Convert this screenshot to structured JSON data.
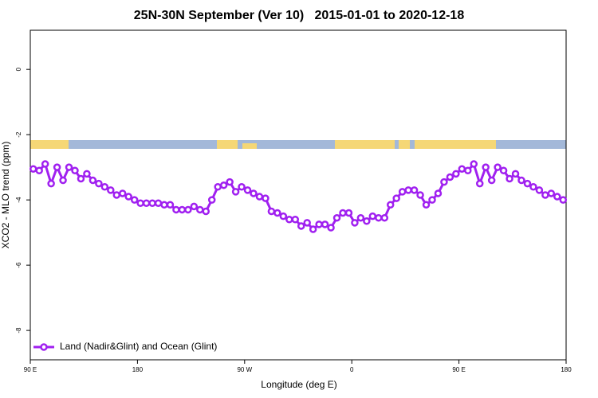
{
  "chart_data": {
    "type": "line",
    "title": "25N-30N September (Ver 10)   2015-01-01 to 2020-12-18",
    "xlabel": "Longitude (deg E)",
    "ylabel": "XCO2 - MLO trend (ppm)",
    "xlim": [
      90,
      540
    ],
    "xticks": [
      {
        "value": 90,
        "label": "90 E"
      },
      180,
      {
        "value": 270,
        "label": "90 W"
      },
      {
        "value": 360,
        "label": "0"
      },
      {
        "value": 450,
        "label": "90 E"
      },
      {
        "value": 540,
        "label": "180"
      }
    ],
    "ylim": [
      -8.9,
      1.2
    ],
    "yticks": [
      0,
      -2,
      -4,
      -6,
      -8
    ],
    "legend": "bottomleft",
    "x": [
      92.5,
      97.5,
      102.5,
      107.5,
      112.5,
      117.5,
      122.5,
      127.5,
      132.5,
      137.5,
      142.5,
      147.5,
      152.5,
      157.5,
      162.5,
      167.5,
      172.5,
      177.5,
      182.5,
      187.5,
      192.5,
      197.5,
      202.5,
      207.5,
      212.5,
      217.5,
      222.5,
      227.5,
      232.5,
      237.5,
      242.5,
      247.5,
      252.5,
      257.5,
      262.5,
      267.5,
      272.5,
      277.5,
      282.5,
      287.5,
      292.5,
      297.5,
      302.5,
      307.5,
      312.5,
      317.5,
      322.5,
      327.5,
      332.5,
      337.5,
      342.5,
      347.5,
      352.5,
      357.5,
      362.5,
      367.5,
      372.5,
      377.5,
      382.5,
      387.5,
      392.5,
      397.5,
      402.5,
      407.5,
      412.5,
      417.5,
      422.5,
      427.5,
      432.5,
      437.5,
      442.5,
      447.5,
      452.5,
      457.5,
      462.5,
      467.5,
      472.5,
      477.5,
      482.5,
      487.5,
      492.5,
      497.5,
      502.5,
      507.5,
      512.5,
      517.5,
      522.5,
      527.5,
      532.5,
      537.5
    ],
    "series": [
      {
        "name": "Land (Nadir&Glint) and Ocean (Glint)",
        "color": "#a020f0",
        "values": [
          -3.05,
          -3.1,
          -2.9,
          -3.5,
          -3.0,
          -3.4,
          -3.0,
          -3.1,
          -3.35,
          -3.2,
          -3.4,
          -3.5,
          -3.6,
          -3.7,
          -3.85,
          -3.8,
          -3.9,
          -4.0,
          -4.1,
          -4.1,
          -4.1,
          -4.1,
          -4.15,
          -4.15,
          -4.3,
          -4.3,
          -4.3,
          -4.2,
          -4.3,
          -4.35,
          -4.0,
          -3.6,
          -3.55,
          -3.45,
          -3.75,
          -3.6,
          -3.7,
          -3.8,
          -3.9,
          -3.95,
          -4.35,
          -4.4,
          -4.5,
          -4.6,
          -4.6,
          -4.8,
          -4.7,
          -4.9,
          -4.75,
          -4.75,
          -4.85,
          -4.55,
          -4.4,
          -4.4,
          -4.7,
          -4.55,
          -4.65,
          -4.5,
          -4.55,
          -4.55,
          -4.15,
          -3.95,
          -3.75,
          -3.7,
          -3.7,
          -3.85,
          -4.15,
          -4.0,
          -3.8,
          -3.45,
          -3.3,
          -3.2,
          -3.05,
          -3.1,
          -2.9,
          -3.5,
          -3.0,
          -3.4,
          -3.0,
          -3.1,
          -3.35,
          -3.2,
          -3.4,
          -3.5,
          -3.6,
          -3.7,
          -3.85,
          -3.8,
          -3.9,
          -4.0
        ]
      }
    ]
  }
}
